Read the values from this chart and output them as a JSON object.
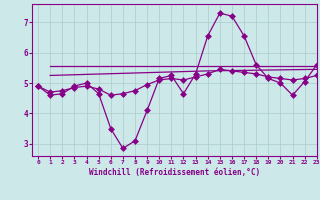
{
  "background_color": "#cce8e8",
  "grid_color": "#aacccc",
  "line_color": "#880088",
  "xlabel": "Windchill (Refroidissement éolien,°C)",
  "xlim": [
    -0.5,
    23
  ],
  "ylim": [
    2.6,
    7.6
  ],
  "yticks": [
    3,
    4,
    5,
    6,
    7
  ],
  "xticks": [
    0,
    1,
    2,
    3,
    4,
    5,
    6,
    7,
    8,
    9,
    10,
    11,
    12,
    13,
    14,
    15,
    16,
    17,
    18,
    19,
    20,
    21,
    22,
    23
  ],
  "series1_x": [
    0,
    1,
    2,
    3,
    4,
    5,
    6,
    7,
    8,
    9,
    10,
    11,
    12,
    13,
    14,
    15,
    16,
    17,
    18,
    19,
    20,
    21,
    22,
    23
  ],
  "series1_y": [
    4.9,
    4.6,
    4.65,
    4.9,
    5.0,
    4.65,
    3.5,
    2.85,
    3.1,
    4.1,
    5.15,
    5.25,
    4.65,
    5.3,
    6.55,
    7.3,
    7.2,
    6.55,
    5.6,
    5.15,
    5.0,
    4.6,
    5.05,
    5.6
  ],
  "series2_x": [
    1,
    23
  ],
  "series2_y": [
    5.55,
    5.55
  ],
  "series3_x": [
    1,
    14,
    23
  ],
  "series3_y": [
    5.25,
    5.4,
    5.45
  ],
  "series4_x": [
    0,
    1,
    2,
    3,
    4,
    5,
    6,
    7,
    8,
    9,
    10,
    11,
    12,
    13,
    14,
    15,
    16,
    17,
    18,
    19,
    20,
    21,
    22,
    23
  ],
  "series4_y": [
    4.9,
    4.7,
    4.75,
    4.85,
    4.9,
    4.8,
    4.6,
    4.65,
    4.75,
    4.95,
    5.1,
    5.15,
    5.1,
    5.2,
    5.3,
    5.45,
    5.4,
    5.35,
    5.3,
    5.2,
    5.15,
    5.1,
    5.15,
    5.25
  ]
}
